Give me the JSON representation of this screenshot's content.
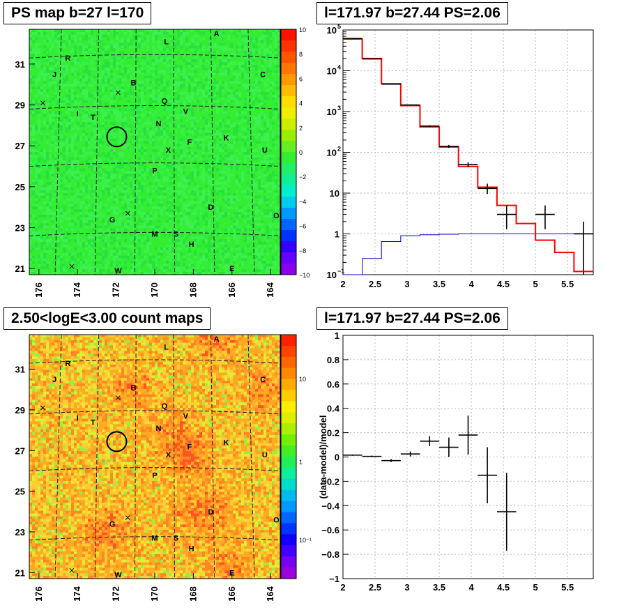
{
  "panels": {
    "ps_map": {
      "title": "PS map b=27 l=170",
      "colorbar_labels": [
        "10",
        "8",
        "6",
        "4",
        "2",
        "0",
        "−2",
        "−4",
        "−6",
        "−8",
        "−10"
      ]
    },
    "spectrum": {
      "title": "l=171.97 b=27.44 PS=2.06"
    },
    "count_map": {
      "title": "2.50<logE<3.00 count maps",
      "colorbar_labels": [
        "10",
        "1",
        "10⁻¹"
      ]
    },
    "residual": {
      "title": "l=171.97 b=27.44 PS=2.06"
    }
  },
  "map_axes": {
    "x_ticks": [
      "176",
      "174",
      "172",
      "170",
      "168",
      "166",
      "164"
    ],
    "y_ticks": [
      "31",
      "29",
      "27",
      "25",
      "23",
      "21"
    ]
  },
  "sources": [
    "A",
    "L",
    "R",
    "J",
    "C",
    "B",
    "Q",
    "I",
    "T",
    "V",
    "N",
    "K",
    "F",
    "X",
    "U",
    "P",
    "D",
    "O",
    "G",
    "M",
    "S",
    "H",
    "E",
    "W"
  ],
  "colors": {
    "data": "#000000",
    "model": "#ff0000",
    "background": "#0000cc",
    "ps_map_fill": "#33ee33"
  },
  "chart_data": [
    {
      "type": "heatmap",
      "title": "PS map b=27 l=170",
      "x_range": [
        176.5,
        163.5
      ],
      "y_range": [
        20.7,
        32.7
      ],
      "xticks": [
        176,
        174,
        172,
        170,
        168,
        166,
        164
      ],
      "yticks": [
        31,
        29,
        27,
        25,
        23,
        21
      ],
      "zlim": [
        -10,
        10
      ],
      "marked_source": {
        "l": 171.97,
        "b": 27.44
      },
      "crosses": [
        {
          "l": 175.8,
          "b": 29.1
        },
        {
          "l": 171.9,
          "b": 29.6
        },
        {
          "l": 171.4,
          "b": 23.7
        },
        {
          "l": 174.3,
          "b": 21.1
        }
      ],
      "labels": [
        {
          "t": "A",
          "l": 166.8,
          "b": 32.5
        },
        {
          "t": "L",
          "l": 169.4,
          "b": 32.1
        },
        {
          "t": "R",
          "l": 174.5,
          "b": 31.3
        },
        {
          "t": "J",
          "l": 175.2,
          "b": 30.5
        },
        {
          "t": "C",
          "l": 164.4,
          "b": 30.5
        },
        {
          "t": "B",
          "l": 171.1,
          "b": 30.1
        },
        {
          "t": "Q",
          "l": 169.5,
          "b": 29.2
        },
        {
          "t": "I",
          "l": 174.0,
          "b": 28.6
        },
        {
          "t": "T",
          "l": 173.2,
          "b": 28.4
        },
        {
          "t": "V",
          "l": 168.4,
          "b": 28.7
        },
        {
          "t": "N",
          "l": 169.8,
          "b": 28.1
        },
        {
          "t": "K",
          "l": 166.3,
          "b": 27.4
        },
        {
          "t": "F",
          "l": 168.2,
          "b": 27.2
        },
        {
          "t": "X",
          "l": 169.3,
          "b": 26.8
        },
        {
          "t": "U",
          "l": 164.3,
          "b": 26.8
        },
        {
          "t": "P",
          "l": 170.0,
          "b": 25.8
        },
        {
          "t": "D",
          "l": 167.1,
          "b": 24.0
        },
        {
          "t": "O",
          "l": 163.7,
          "b": 23.6
        },
        {
          "t": "G",
          "l": 172.2,
          "b": 23.4
        },
        {
          "t": "M",
          "l": 170.0,
          "b": 22.7
        },
        {
          "t": "S",
          "l": 168.9,
          "b": 22.7
        },
        {
          "t": "H",
          "l": 168.1,
          "b": 22.2
        },
        {
          "t": "E",
          "l": 166.0,
          "b": 21.0
        },
        {
          "t": "W",
          "l": 171.9,
          "b": 20.9
        }
      ]
    },
    {
      "type": "line",
      "title": "l=171.97 b=27.44 PS=2.06",
      "xlim": [
        2,
        5.9
      ],
      "ylim": [
        0.1,
        100000
      ],
      "yscale": "log",
      "xticks": [
        2,
        2.5,
        3,
        3.5,
        4,
        4.5,
        5,
        5.5
      ],
      "grid": true,
      "series": [
        {
          "values": [
            [
              2.0,
              60000
            ],
            [
              2.3,
              20000
            ],
            [
              2.6,
              4800
            ],
            [
              2.9,
              1400
            ],
            [
              3.2,
              420
            ],
            [
              3.5,
              135
            ],
            [
              3.8,
              45
            ],
            [
              4.1,
              14
            ],
            [
              4.4,
              5
            ],
            [
              4.7,
              1.8
            ],
            [
              5.0,
              0.7
            ],
            [
              5.3,
              0.35
            ],
            [
              5.6,
              0.12
            ],
            [
              5.9,
              0.12
            ]
          ]
        },
        {
          "values": [
            [
              2.0,
              0.05
            ],
            [
              2.3,
              0.25
            ],
            [
              2.6,
              0.65
            ],
            [
              2.9,
              0.9
            ],
            [
              3.2,
              0.95
            ],
            [
              3.5,
              0.98
            ],
            [
              3.8,
              1.0
            ],
            [
              4.1,
              1.0
            ],
            [
              4.4,
              1.0
            ],
            [
              4.7,
              1.0
            ],
            [
              5.0,
              1.0
            ],
            [
              5.3,
              1.0
            ],
            [
              5.6,
              1.02
            ],
            [
              5.9,
              1.05
            ]
          ]
        },
        {
          "points": [
            {
              "x": 2.15,
              "y": 62000,
              "xerr": 0.15,
              "ylo": 61500,
              "yhi": 62500
            },
            {
              "x": 2.45,
              "y": 19500,
              "xerr": 0.15,
              "ylo": 19300,
              "yhi": 19700
            },
            {
              "x": 2.75,
              "y": 4700,
              "xerr": 0.15,
              "ylo": 4630,
              "yhi": 4770
            },
            {
              "x": 3.05,
              "y": 1450,
              "xerr": 0.15,
              "ylo": 1410,
              "yhi": 1490
            },
            {
              "x": 3.35,
              "y": 440,
              "xerr": 0.15,
              "ylo": 420,
              "yhi": 460
            },
            {
              "x": 3.65,
              "y": 140,
              "xerr": 0.15,
              "ylo": 128,
              "yhi": 152
            },
            {
              "x": 3.95,
              "y": 50,
              "xerr": 0.15,
              "ylo": 43,
              "yhi": 57
            },
            {
              "x": 4.25,
              "y": 13,
              "xerr": 0.15,
              "ylo": 9.5,
              "yhi": 17
            },
            {
              "x": 4.55,
              "y": 3,
              "xerr": 0.15,
              "ylo": 1.3,
              "yhi": 5
            },
            {
              "x": 5.15,
              "y": 3,
              "xerr": 0.15,
              "ylo": 1.3,
              "yhi": 5
            },
            {
              "x": 5.75,
              "y": 1,
              "xerr": 0.15,
              "ylo": 0.1,
              "yhi": 2
            }
          ]
        }
      ]
    },
    {
      "type": "heatmap",
      "title": "2.50<logE<3.00 count maps",
      "x_range": [
        176.5,
        163.5
      ],
      "y_range": [
        20.7,
        32.7
      ],
      "xticks": [
        176,
        174,
        172,
        170,
        168,
        166,
        164
      ],
      "yticks": [
        31,
        29,
        27,
        25,
        23,
        21
      ],
      "zscale": "log",
      "zticks": [
        10,
        1,
        0.1
      ]
    },
    {
      "type": "scatter",
      "title": "l=171.97 b=27.44 PS=2.06",
      "ylabel": "(data-model)/model",
      "xlim": [
        2,
        5.9
      ],
      "ylim": [
        -1,
        1
      ],
      "xticks": [
        2,
        2.5,
        3,
        3.5,
        4,
        4.5,
        5,
        5.5
      ],
      "yticks": [
        -1,
        -0.8,
        -0.6,
        -0.4,
        -0.2,
        0,
        0.2,
        0.4,
        0.6,
        0.8,
        1
      ],
      "grid": true,
      "points": [
        {
          "x": 2.15,
          "y": 0.015,
          "xerr": 0.15,
          "yerr": 0.005
        },
        {
          "x": 2.45,
          "y": 0.005,
          "xerr": 0.15,
          "yerr": 0.006
        },
        {
          "x": 2.75,
          "y": -0.03,
          "xerr": 0.15,
          "yerr": 0.012
        },
        {
          "x": 3.05,
          "y": 0.025,
          "xerr": 0.15,
          "yerr": 0.02
        },
        {
          "x": 3.35,
          "y": 0.13,
          "xerr": 0.15,
          "yerr": 0.04
        },
        {
          "x": 3.65,
          "y": 0.08,
          "xerr": 0.15,
          "yerr": 0.08
        },
        {
          "x": 3.95,
          "y": 0.18,
          "xerr": 0.15,
          "yerr": 0.16
        },
        {
          "x": 4.25,
          "y": -0.15,
          "xerr": 0.15,
          "yerr": 0.23
        },
        {
          "x": 4.55,
          "y": -0.45,
          "xerr": 0.15,
          "yerr": 0.32
        }
      ]
    }
  ]
}
